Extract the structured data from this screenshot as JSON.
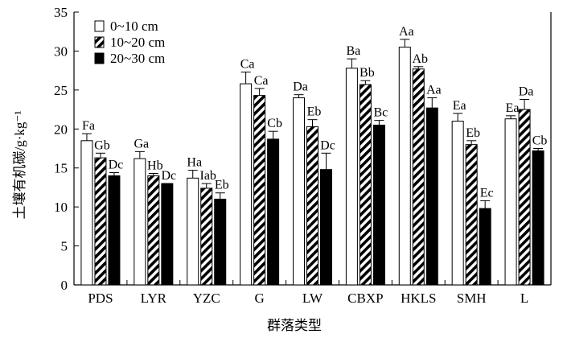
{
  "chart_data": {
    "type": "bar",
    "title": "",
    "xlabel": "群落类型",
    "ylabel": "土壤有机碳/g·kg⁻¹",
    "ylim": [
      0,
      35
    ],
    "yticks": [
      0,
      5,
      10,
      15,
      20,
      25,
      30,
      35
    ],
    "grid": false,
    "legend_position": "top-left",
    "categories": [
      "PDS",
      "LYR",
      "YZC",
      "G",
      "LW",
      "CBXP",
      "HKLS",
      "SMH",
      "L"
    ],
    "series": [
      {
        "name": "0~10 cm",
        "fill": "white",
        "values": [
          18.5,
          16.2,
          13.7,
          25.8,
          24.0,
          27.8,
          30.5,
          21.0,
          21.3
        ],
        "errors": [
          0.9,
          0.9,
          1.0,
          1.5,
          0.4,
          1.2,
          1.0,
          1.0,
          0.4
        ],
        "labels": [
          "Fa",
          "Ga",
          "Ha",
          "Ca",
          "Da",
          "Ba",
          "Aa",
          "Ea",
          "Ea"
        ]
      },
      {
        "name": "10~20 cm",
        "fill": "hatched",
        "values": [
          16.3,
          14.0,
          12.4,
          24.3,
          20.3,
          25.7,
          27.7,
          18.0,
          22.5
        ],
        "errors": [
          0.6,
          0.3,
          0.6,
          0.9,
          0.9,
          0.5,
          0.3,
          0.5,
          1.3
        ],
        "labels": [
          "Gb",
          "Hb",
          "Iab",
          "Ca",
          "Eb",
          "Bb",
          "Ab",
          "Eb",
          "Da"
        ]
      },
      {
        "name": "20~30 cm",
        "fill": "black",
        "values": [
          14.0,
          13.0,
          11.0,
          18.7,
          14.8,
          20.5,
          22.7,
          9.8,
          17.2
        ],
        "errors": [
          0.4,
          0.0,
          0.8,
          1.0,
          2.1,
          0.6,
          1.3,
          1.0,
          0.3
        ],
        "labels": [
          "Dc",
          "Dc",
          "Eb",
          "Cb",
          "Dc",
          "Bc",
          "Aa",
          "Ec",
          "Cb"
        ]
      }
    ]
  },
  "colors": {
    "axis": "#000000",
    "bar_outline": "#000000",
    "solid_fill": "#000000",
    "open_fill": "#ffffff"
  }
}
